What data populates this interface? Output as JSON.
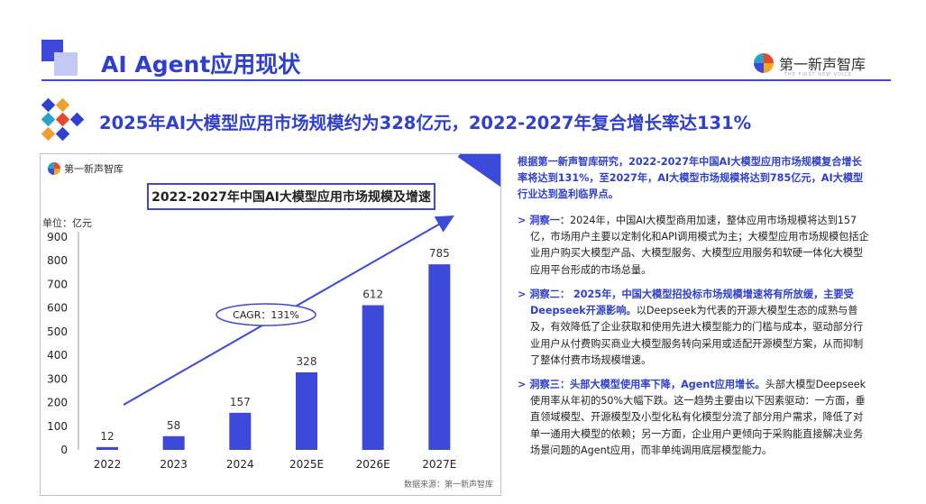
{
  "header": {
    "title": "AI Agent应用现状",
    "logo_name": "第一新声智库",
    "logo_sub": "THE FIRST NEW VOICE",
    "icon": "square-blocks-icon"
  },
  "subtitle": {
    "text": "2025年AI大模型应用市场规模约为328亿元，2022-2027年复合增长率达131%",
    "icon": "diamond-cluster-icon"
  },
  "chart_panel": {
    "logo_name": "第一新声智库",
    "title": "2022-2027年中国AI大模型应用市场规模及增速",
    "source": "数据来源：第一新声智库"
  },
  "chart_data": {
    "type": "bar",
    "title": "2022-2027年中国AI大模型应用市场规模及增速",
    "unit_label": "单位：亿元",
    "categories": [
      "2022",
      "2023",
      "2024",
      "2025E",
      "2026E",
      "2027E"
    ],
    "values": [
      12,
      58,
      157,
      328,
      612,
      785
    ],
    "ylim": [
      0,
      900
    ],
    "yticks": [
      0,
      100,
      200,
      300,
      400,
      500,
      600,
      700,
      800,
      900
    ],
    "annotation": "CAGR：131%",
    "bar_color": "#3d49d8",
    "grid": false
  },
  "text": {
    "intro": "根据第一新声智库研究，2022-2027年中国AI大模型应用市场规模复合增长率将达到131%，至2027年，AI大模型市场规模将达到785亿元，AI大模型行业达到盈利临界点。",
    "insight1_label": "洞察一：",
    "insight1_body": "2024年，中国AI大模型商用加速，整体应用市场规模将达到157亿，市场用户主要以定制化和API调用模式为主；大模型应用市场规模包括企业用户购买大模型产品、大模型服务、大模型应用服务和软硬一体化大模型应用平台形成的市场总量。",
    "insight2_label": "洞察二：",
    "insight2_bold": " 2025年，中国大模型招投标市场规模增速将有所放缓，主要受Deepseek开源影响。",
    "insight2_body": "以Deepseek为代表的开源大模型生态的成熟与普及，有效降低了企业获取和使用先进大模型能力的门槛与成本，驱动部分行业用户从付费购买商业大模型服务转向采用或适配开源模型方案，从而抑制了整体付费市场规模增速。",
    "insight3_label": "洞察三：",
    "insight3_bold": "头部大模型使用率下降，Agent应用增长。",
    "insight3_body": "头部大模型Deepseek使用率从年初的50%大幅下跌。这一趋势主要由以下因素驱动：一方面，垂直领域模型、开源模型及小型化私有化模型分流了部分用户需求，降低了对单一通用大模型的依赖；另一方面，企业用户更倾向于采购能直接解决业务场景问题的Agent应用，而非单纯调用底层模型能力。",
    "bullet_icon": "chevron-right-icon"
  }
}
